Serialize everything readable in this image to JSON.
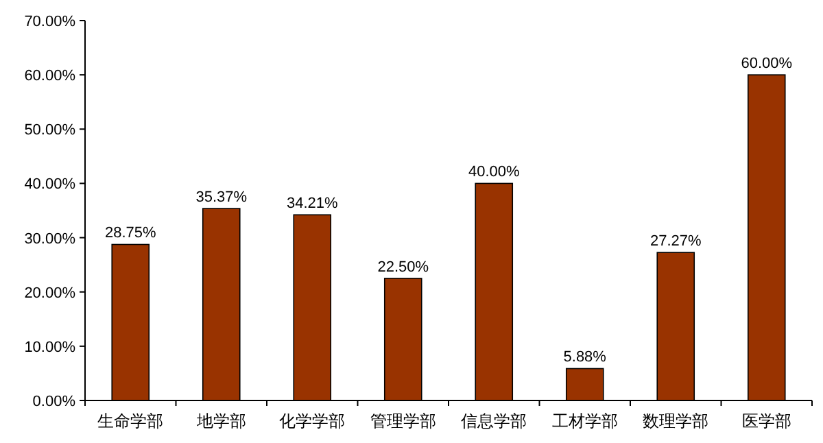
{
  "chart_data": {
    "type": "bar",
    "categories": [
      "生命学部",
      "地学部",
      "化学学部",
      "管理学部",
      "信息学部",
      "工材学部",
      "数理学部",
      "医学部"
    ],
    "values": [
      28.75,
      35.37,
      34.21,
      22.5,
      40.0,
      5.88,
      27.27,
      60.0
    ],
    "value_labels": [
      "28.75%",
      "35.37%",
      "34.21%",
      "22.50%",
      "40.00%",
      "5.88%",
      "27.27%",
      "60.00%"
    ],
    "color": "#993300",
    "ylim": [
      0,
      70
    ],
    "yticks": [
      {
        "value": 0,
        "label": "0.00%"
      },
      {
        "value": 10,
        "label": "10.00%"
      },
      {
        "value": 20,
        "label": "20.00%"
      },
      {
        "value": 30,
        "label": "30.00%"
      },
      {
        "value": 40,
        "label": "40.00%"
      },
      {
        "value": 50,
        "label": "50.00%"
      },
      {
        "value": 60,
        "label": "60.00%"
      },
      {
        "value": 70,
        "label": "70.00%"
      }
    ]
  }
}
